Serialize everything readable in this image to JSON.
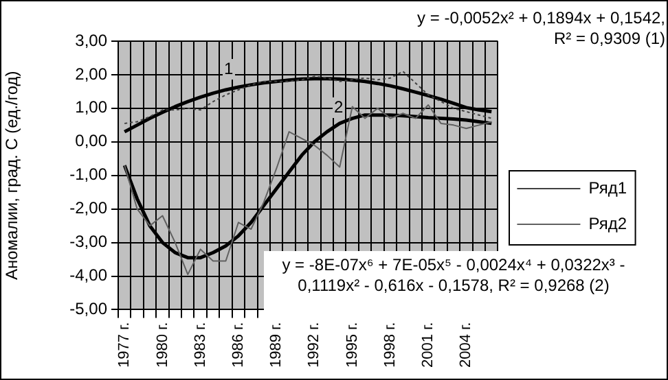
{
  "chart_data": {
    "type": "line",
    "ylabel": "Аномалии, град. С (ед./год)",
    "categories": [
      "1977 г.",
      null,
      null,
      "1980 г.",
      null,
      null,
      "1983 г.",
      null,
      null,
      "1986 г.",
      null,
      null,
      "1989 г.",
      null,
      null,
      "1992 г.",
      null,
      null,
      "1995 г.",
      null,
      null,
      "1998 г.",
      null,
      null,
      "2001 г.",
      null,
      null,
      "2004 г.",
      null,
      null
    ],
    "series": [
      {
        "name": "Ряд1",
        "color": "#404040",
        "line_style": "dotted",
        "values": [
          0.55,
          0.6,
          0.75,
          0.95,
          0.95,
          1.0,
          0.95,
          1.2,
          1.4,
          1.55,
          1.7,
          1.8,
          1.8,
          1.8,
          1.85,
          1.95,
          1.9,
          1.8,
          1.85,
          1.9,
          1.85,
          1.9,
          2.1,
          1.75,
          1.4,
          1.2,
          1.0,
          0.9,
          0.8,
          0.7
        ]
      },
      {
        "name": "Ряд2",
        "color": "#606060",
        "line_style": "solid",
        "values": [
          -0.7,
          -2.0,
          -2.5,
          -2.2,
          -3.0,
          -3.95,
          -3.2,
          -3.55,
          -3.55,
          -2.4,
          -2.6,
          -1.8,
          -0.8,
          0.3,
          0.1,
          -0.1,
          -0.4,
          -0.75,
          1.05,
          0.7,
          1.0,
          0.7,
          0.85,
          0.7,
          1.1,
          0.55,
          0.5,
          0.4,
          0.5,
          0.6
        ]
      },
      {
        "type": "line",
        "color": "#000000",
        "line_style": "solid",
        "values": [
          0.3,
          0.5,
          0.7,
          0.88,
          1.05,
          1.2,
          1.33,
          1.45,
          1.55,
          1.63,
          1.7,
          1.76,
          1.8,
          1.84,
          1.87,
          1.88,
          1.88,
          1.87,
          1.84,
          1.8,
          1.74,
          1.67,
          1.58,
          1.48,
          1.38,
          1.27,
          1.15,
          1.02,
          0.95,
          0.9
        ]
      },
      {
        "type": "line",
        "color": "#000000",
        "line_style": "solid",
        "values": [
          -0.7,
          -1.7,
          -2.5,
          -3.0,
          -3.3,
          -3.45,
          -3.45,
          -3.3,
          -3.1,
          -2.8,
          -2.4,
          -1.9,
          -1.4,
          -0.9,
          -0.4,
          0.0,
          0.3,
          0.55,
          0.7,
          0.8,
          0.8,
          0.8,
          0.78,
          0.75,
          0.72,
          0.7,
          0.68,
          0.65,
          0.6,
          0.55
        ]
      }
    ],
    "ylim": [
      -5,
      3
    ],
    "yticks": [
      {
        "value": 3,
        "label": "3,00"
      },
      {
        "value": 2,
        "label": "2,00"
      },
      {
        "value": 1,
        "label": "1,00"
      },
      {
        "value": 0,
        "label": "0,00"
      },
      {
        "value": -1,
        "label": "-1,00"
      },
      {
        "value": -2,
        "label": "-2,00"
      },
      {
        "value": -3,
        "label": "-3,00"
      },
      {
        "value": -4,
        "label": "-4,00"
      },
      {
        "value": -5,
        "label": "-5,00"
      }
    ],
    "grid": true,
    "legend": "right",
    "marker": "none",
    "annotations": [
      "y = -0,0052x² + 0,1894x + 0,1542, R² = 0,9309 (1)",
      "y = -8E-07x⁶ + 7E-05x⁵ - 0,0024x⁴ + 0,0322x³ - 0,1119x² - 0,616x - 0,1578, R² = 0,9268 (2)",
      "1",
      "2"
    ]
  }
}
